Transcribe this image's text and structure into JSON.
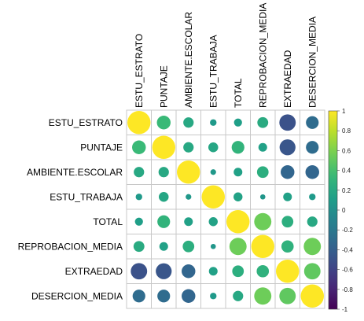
{
  "chart_data": {
    "type": "heatmap",
    "variables": [
      "ESTU_ESTRATO",
      "PUNTAJE",
      "AMBIENTE.ESCOLAR",
      "ESTU_TRABAJA",
      "TOTAL",
      "REPROBACION_MEDIA",
      "EXTRAEDAD",
      "DESERCION_MEDIA"
    ],
    "matrix": [
      [
        1.0,
        0.35,
        0.2,
        0.08,
        0.12,
        0.22,
        -0.5,
        -0.3
      ],
      [
        0.35,
        1.0,
        0.2,
        0.18,
        0.3,
        0.14,
        -0.47,
        -0.3
      ],
      [
        0.2,
        0.2,
        1.0,
        0.06,
        0.14,
        0.25,
        -0.35,
        -0.35
      ],
      [
        0.08,
        0.18,
        0.06,
        1.0,
        0.15,
        0.05,
        0.14,
        0.08
      ],
      [
        0.12,
        0.3,
        0.14,
        0.15,
        1.0,
        0.55,
        0.25,
        0.2
      ],
      [
        0.22,
        0.14,
        0.25,
        0.05,
        0.55,
        1.0,
        0.28,
        0.55
      ],
      [
        -0.5,
        -0.47,
        -0.35,
        0.14,
        0.25,
        0.28,
        1.0,
        0.5
      ],
      [
        -0.3,
        -0.3,
        -0.35,
        0.08,
        0.2,
        0.55,
        0.5,
        1.0
      ]
    ],
    "colorbar": {
      "min": -1,
      "max": 1,
      "ticks": [
        1,
        0.8,
        0.6,
        0.4,
        0.2,
        0,
        -0.2,
        -0.4,
        -0.6,
        -0.8,
        -1
      ],
      "tick_labels": [
        "1",
        "0.8",
        "0.6",
        "0.4",
        "0.2",
        "0",
        "-0.2",
        "-0.4",
        "-0.6",
        "-0.8",
        "-1"
      ],
      "colormap": "viridis",
      "position": "right"
    },
    "glyph": "circle",
    "grid": true
  }
}
